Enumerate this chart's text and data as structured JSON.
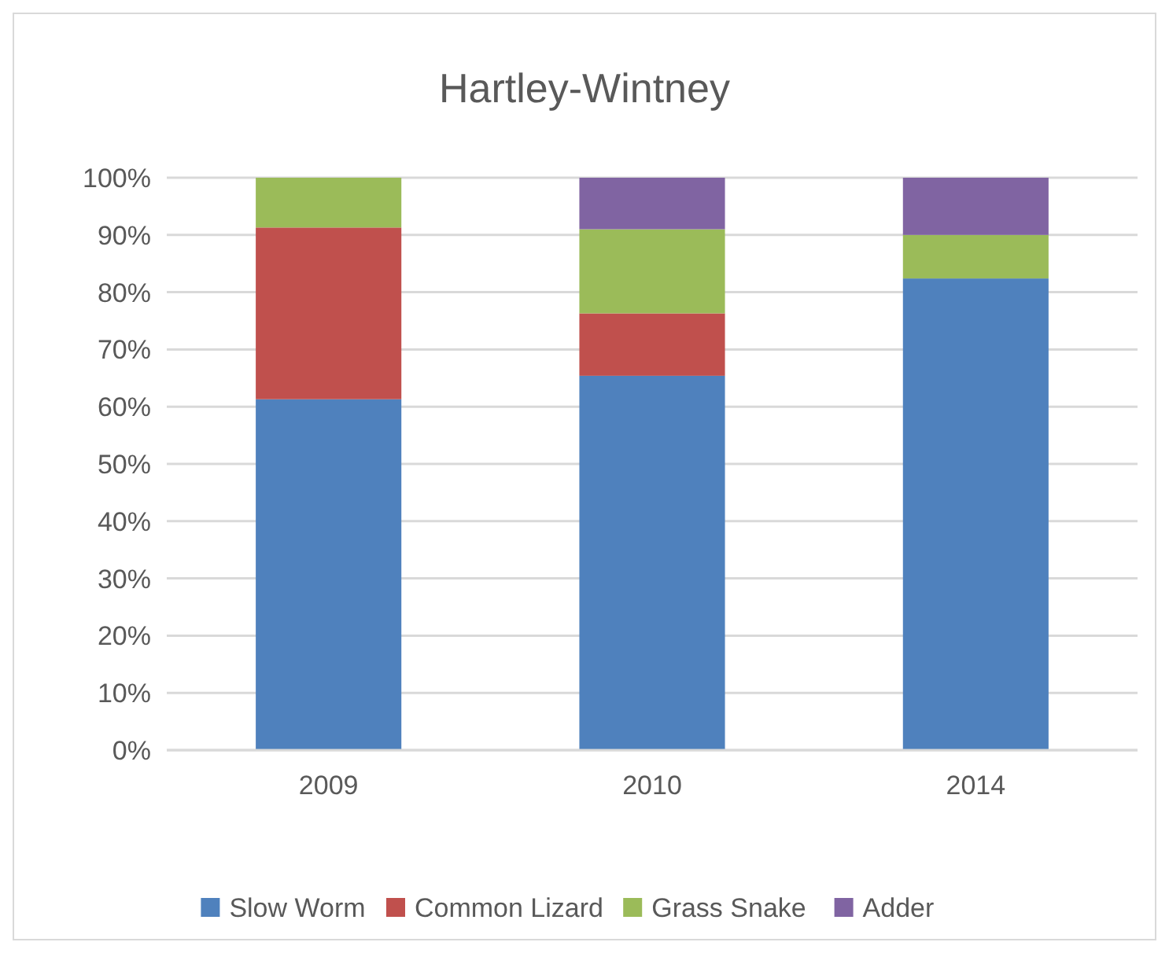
{
  "chart_data": {
    "type": "bar",
    "title": "Hartley-Wintney",
    "categories": [
      "2009",
      "2010",
      "2014"
    ],
    "stacked": true,
    "series": [
      {
        "name": "Slow Worm",
        "color": "#4f81bd",
        "values": [
          61.3,
          65.4,
          82.4
        ]
      },
      {
        "name": "Common Lizard",
        "color": "#c0504d",
        "values": [
          30.0,
          10.9,
          0
        ]
      },
      {
        "name": "Grass Snake",
        "color": "#9bbb59",
        "values": [
          8.7,
          14.7,
          7.6
        ]
      },
      {
        "name": "Adder",
        "color": "#8064a2",
        "values": [
          0,
          9.0,
          10.0
        ]
      }
    ],
    "ylim": [
      0,
      100
    ],
    "yticks": [
      {
        "value": 0,
        "label": "0%"
      },
      {
        "value": 10,
        "label": "10%"
      },
      {
        "value": 20,
        "label": "20%"
      },
      {
        "value": 30,
        "label": "30%"
      },
      {
        "value": 40,
        "label": "40%"
      },
      {
        "value": 50,
        "label": "50%"
      },
      {
        "value": 60,
        "label": "60%"
      },
      {
        "value": 70,
        "label": "70%"
      },
      {
        "value": 80,
        "label": "80%"
      },
      {
        "value": 90,
        "label": "90%"
      },
      {
        "value": 100,
        "label": "100%"
      }
    ],
    "grid": "y",
    "legend": "bottom"
  }
}
